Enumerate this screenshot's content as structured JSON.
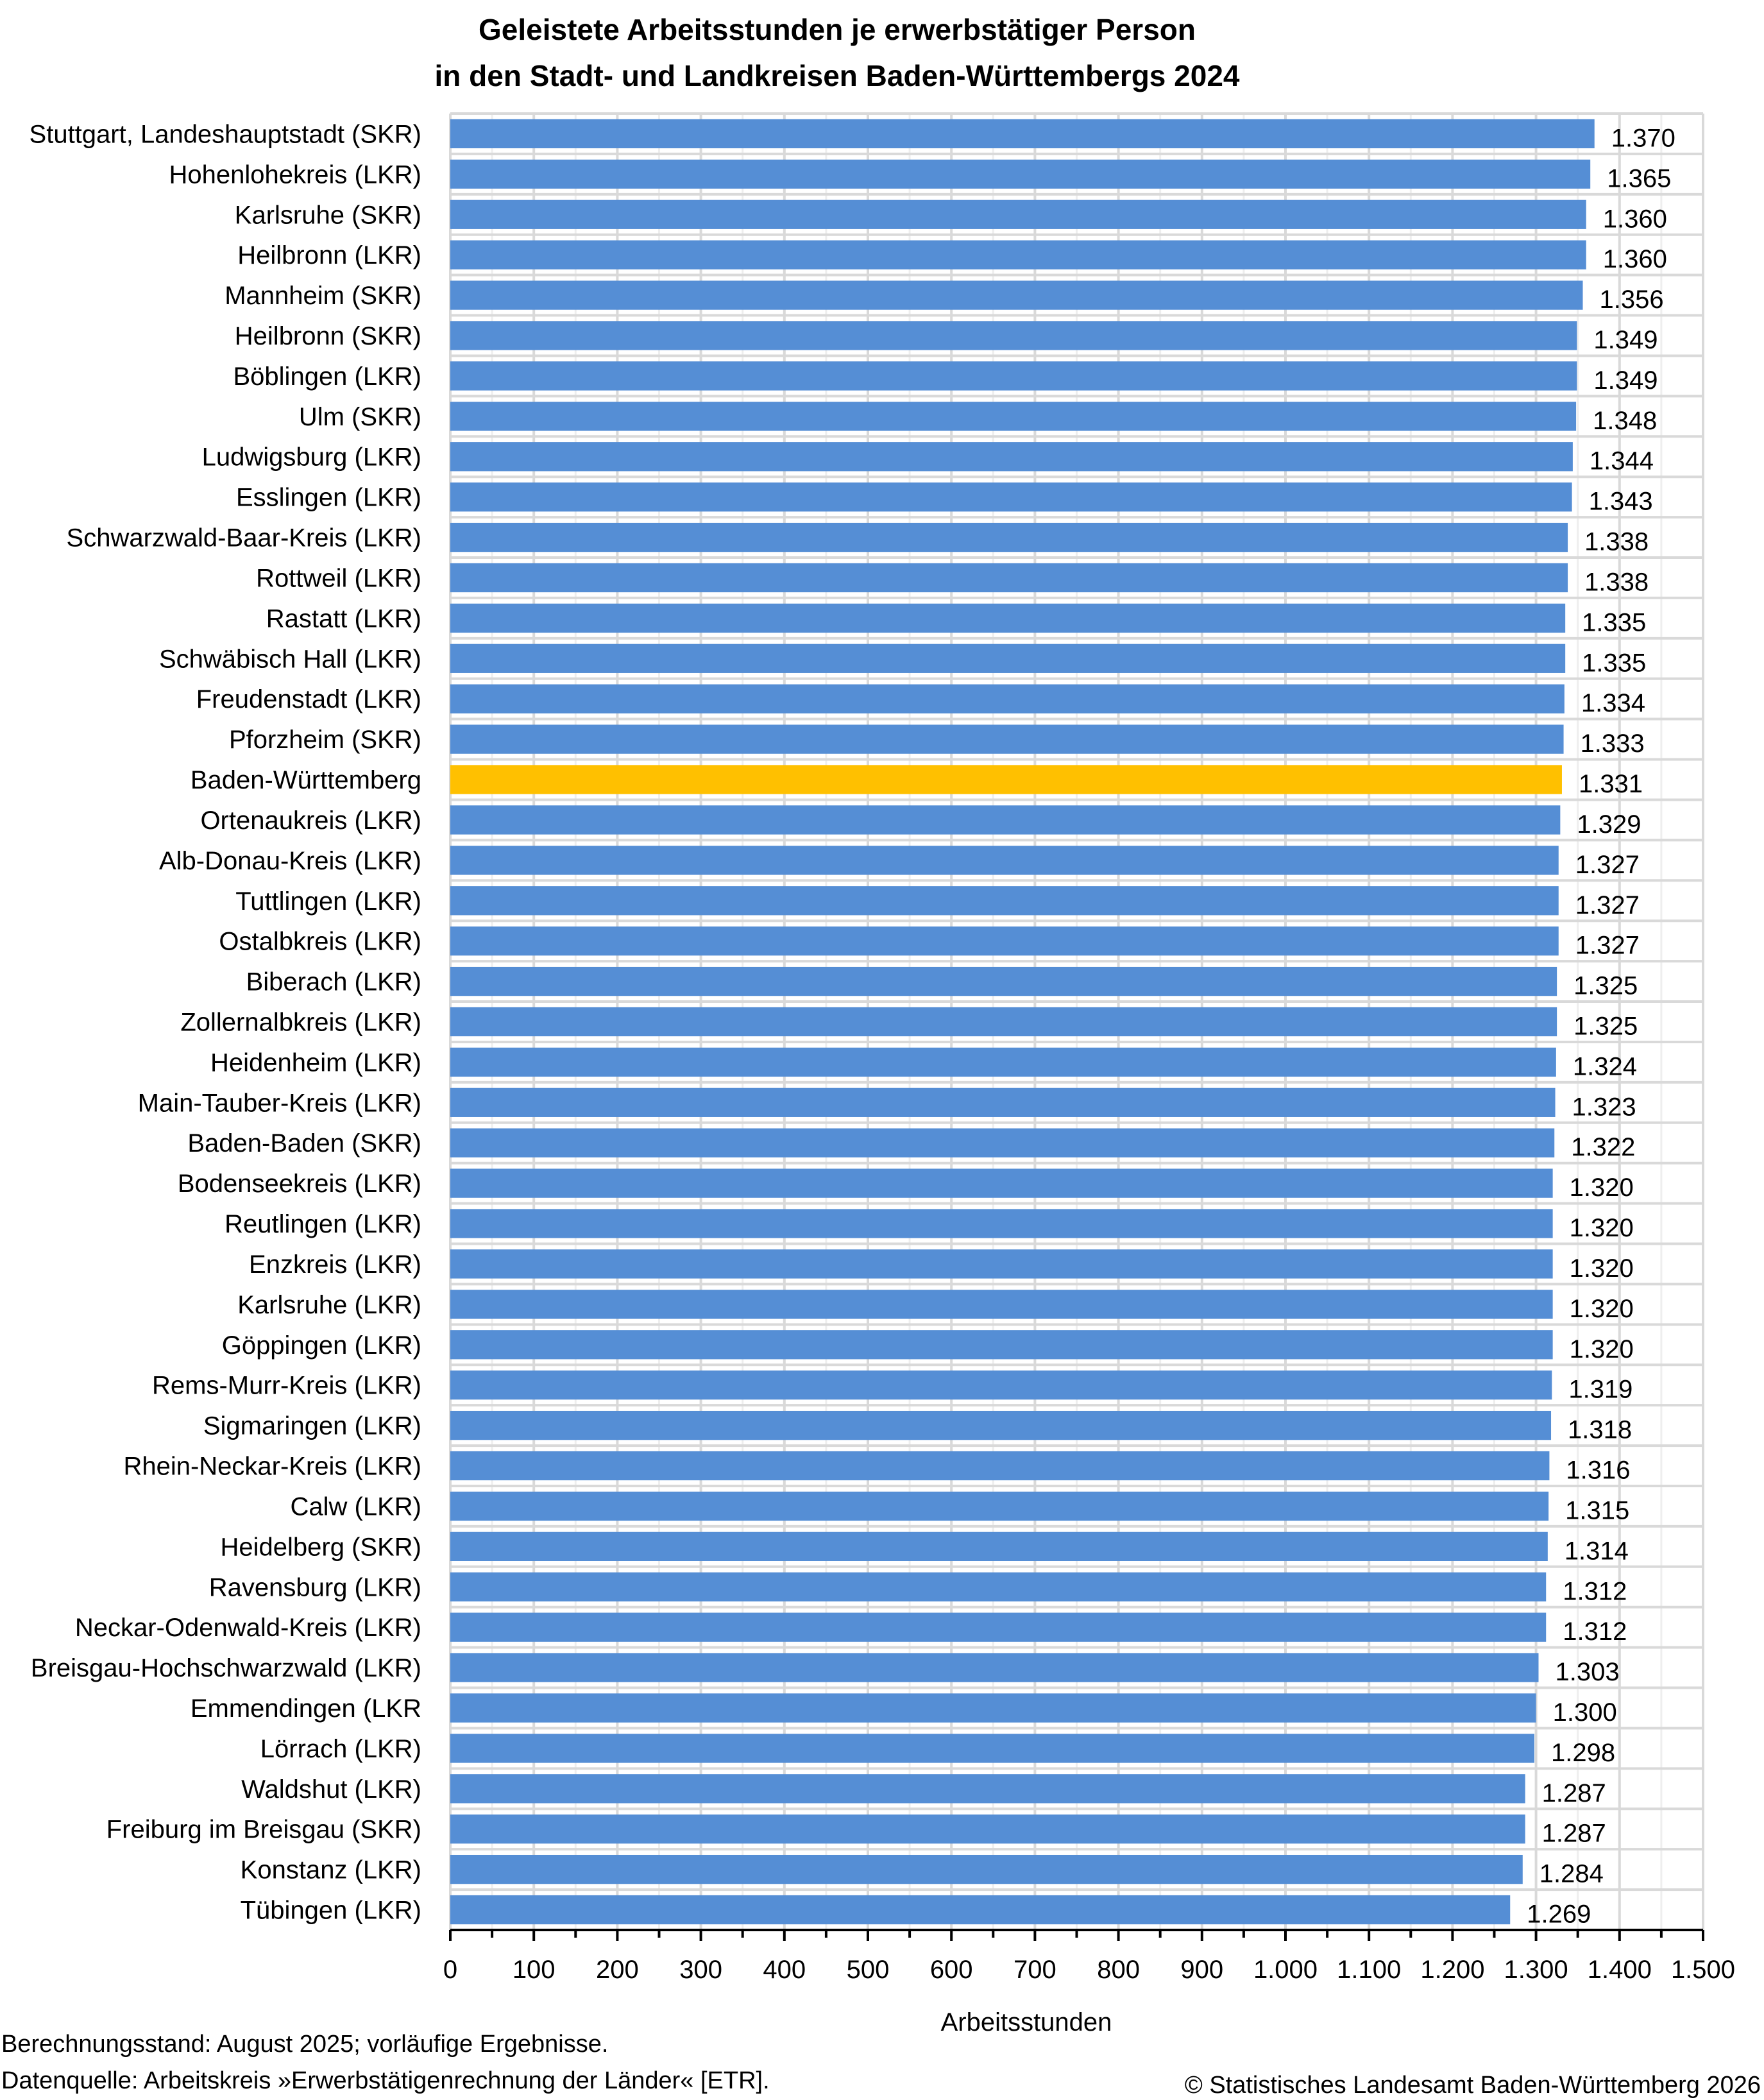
{
  "chart_data": {
    "type": "bar",
    "orientation": "horizontal",
    "title": [
      "Geleistete Arbeitsstunden je erwerbstätiger Person",
      "in den Stadt- und Landkreisen Baden-Württembergs 2024"
    ],
    "xlabel": "Arbeitsstunden",
    "ylabel": "",
    "xlim": [
      0,
      1500
    ],
    "xticks": [
      "0",
      "100",
      "200",
      "300",
      "400",
      "500",
      "600",
      "700",
      "800",
      "900",
      "1.000",
      "1.100",
      "1.200",
      "1.300",
      "1.400",
      "1.500"
    ],
    "grid": true,
    "colors": {
      "bar": "#558ed5",
      "highlight": "#ffc000"
    },
    "highlight_category": "Baden-Württemberg",
    "categories": [
      "Stuttgart, Landeshauptstadt (SKR)",
      "Hohenlohekreis (LKR)",
      "Karlsruhe (SKR)",
      "Heilbronn (LKR)",
      "Mannheim (SKR)",
      "Heilbronn (SKR)",
      "Böblingen (LKR)",
      "Ulm (SKR)",
      "Ludwigsburg (LKR)",
      "Esslingen (LKR)",
      "Schwarzwald-Baar-Kreis (LKR)",
      "Rottweil (LKR)",
      "Rastatt (LKR)",
      "Schwäbisch Hall (LKR)",
      "Freudenstadt (LKR)",
      "Pforzheim (SKR)",
      "Baden-Württemberg",
      "Ortenaukreis (LKR)",
      "Alb-Donau-Kreis (LKR)",
      "Tuttlingen (LKR)",
      "Ostalbkreis (LKR)",
      "Biberach (LKR)",
      "Zollernalbkreis (LKR)",
      "Heidenheim (LKR)",
      "Main-Tauber-Kreis (LKR)",
      "Baden-Baden (SKR)",
      "Bodenseekreis (LKR)",
      "Reutlingen (LKR)",
      "Enzkreis (LKR)",
      "Karlsruhe (LKR)",
      "Göppingen (LKR)",
      "Rems-Murr-Kreis (LKR)",
      "Sigmaringen (LKR)",
      "Rhein-Neckar-Kreis (LKR)",
      "Calw (LKR)",
      "Heidelberg (SKR)",
      "Ravensburg (LKR)",
      "Neckar-Odenwald-Kreis (LKR)",
      "Breisgau-Hochschwarzwald (LKR)",
      "Emmendingen (LKR",
      "Lörrach (LKR)",
      "Waldshut (LKR)",
      "Freiburg im Breisgau (SKR)",
      "Konstanz (LKR)",
      "Tübingen (LKR)"
    ],
    "values": [
      1370,
      1365,
      1360,
      1360,
      1356,
      1349,
      1349,
      1348,
      1344,
      1343,
      1338,
      1338,
      1335,
      1335,
      1334,
      1333,
      1331,
      1329,
      1327,
      1327,
      1327,
      1325,
      1325,
      1324,
      1323,
      1322,
      1320,
      1320,
      1320,
      1320,
      1320,
      1319,
      1318,
      1316,
      1315,
      1314,
      1312,
      1312,
      1303,
      1300,
      1298,
      1287,
      1287,
      1284,
      1269
    ],
    "value_labels": [
      "1.370",
      "1.365",
      "1.360",
      "1.360",
      "1.356",
      "1.349",
      "1.349",
      "1.348",
      "1.344",
      "1.343",
      "1.338",
      "1.338",
      "1.335",
      "1.335",
      "1.334",
      "1.333",
      "1.331",
      "1.329",
      "1.327",
      "1.327",
      "1.327",
      "1.325",
      "1.325",
      "1.324",
      "1.323",
      "1.322",
      "1.320",
      "1.320",
      "1.320",
      "1.320",
      "1.320",
      "1.319",
      "1.318",
      "1.316",
      "1.315",
      "1.314",
      "1.312",
      "1.312",
      "1.303",
      "1.300",
      "1.298",
      "1.287",
      "1.287",
      "1.284",
      "1.269"
    ]
  },
  "footer": {
    "note": "Berechnungsstand: August 2025; vorläufige Ergebnisse.",
    "source": "Datenquelle: Arbeitskreis »Erwerbstätigenrechnung der Länder« [ETR].",
    "copyright": "© Statistisches Landesamt Baden-Württemberg 2026"
  }
}
